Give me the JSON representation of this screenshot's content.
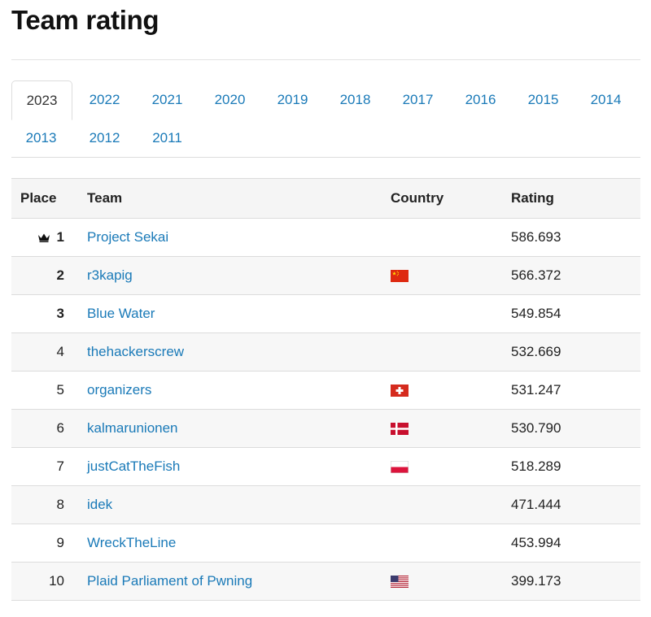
{
  "page": {
    "title": "Team rating"
  },
  "tabs": {
    "active": "2023",
    "row1": [
      "2023",
      "2022",
      "2021",
      "2020",
      "2019",
      "2018",
      "2017",
      "2016",
      "2015",
      "2014"
    ],
    "row2": [
      "2013",
      "2012",
      "2011"
    ]
  },
  "table": {
    "headers": {
      "place": "Place",
      "team": "Team",
      "country": "Country",
      "rating": "Rating"
    },
    "rows": [
      {
        "place": "1",
        "team": "Project Sekai",
        "country_flag": "",
        "rating": "586.693",
        "crown_icon": "crown-icon"
      },
      {
        "place": "2",
        "team": "r3kapig",
        "country_flag": "china-flag-icon",
        "rating": "566.372"
      },
      {
        "place": "3",
        "team": "Blue Water",
        "country_flag": "",
        "rating": "549.854"
      },
      {
        "place": "4",
        "team": "thehackerscrew",
        "country_flag": "",
        "rating": "532.669"
      },
      {
        "place": "5",
        "team": "organizers",
        "country_flag": "switzerland-flag-icon",
        "rating": "531.247"
      },
      {
        "place": "6",
        "team": "kalmarunionen",
        "country_flag": "denmark-flag-icon",
        "rating": "530.790"
      },
      {
        "place": "7",
        "team": "justCatTheFish",
        "country_flag": "poland-flag-icon",
        "rating": "518.289"
      },
      {
        "place": "8",
        "team": "idek",
        "country_flag": "",
        "rating": "471.444"
      },
      {
        "place": "9",
        "team": "WreckTheLine",
        "country_flag": "",
        "rating": "453.994"
      },
      {
        "place": "10",
        "team": "Plaid Parliament of Pwning",
        "country_flag": "usa-flag-icon",
        "rating": "399.173"
      }
    ]
  },
  "colors": {
    "link": "#1a7ab8",
    "header_bg": "#f5f5f5",
    "row_alt_bg": "#f7f7f7",
    "border": "#dcdcdc"
  }
}
